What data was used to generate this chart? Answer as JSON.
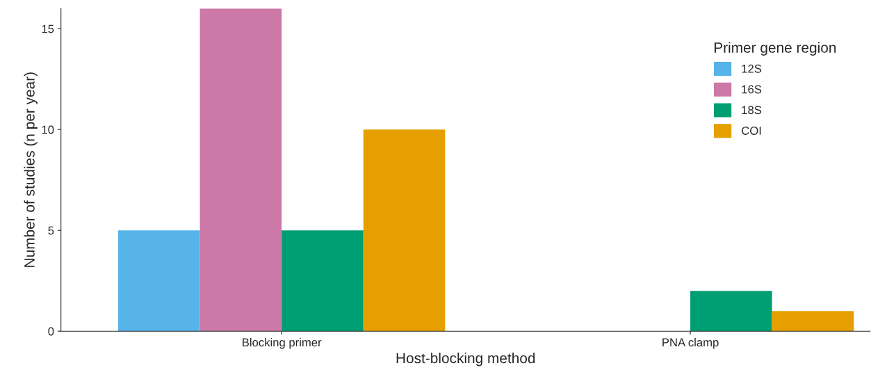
{
  "chart_data": {
    "type": "bar",
    "xlabel": "Host-blocking method",
    "ylabel": "Number of studies (n per year)",
    "legend_title": "Primer gene region",
    "categories": [
      "Blocking primer",
      "PNA clamp"
    ],
    "series": [
      {
        "name": "12S",
        "color": "#56b4e9",
        "values": [
          5,
          null
        ]
      },
      {
        "name": "16S",
        "color": "#cc79a7",
        "values": [
          16,
          null
        ]
      },
      {
        "name": "18S",
        "color": "#009e73",
        "values": [
          5,
          2
        ]
      },
      {
        "name": "COI",
        "color": "#e69f00",
        "values": [
          10,
          1
        ]
      }
    ],
    "ylim": [
      0,
      16
    ],
    "yticks": [
      0,
      5,
      10,
      15
    ],
    "grid": false,
    "legend": "top right"
  }
}
